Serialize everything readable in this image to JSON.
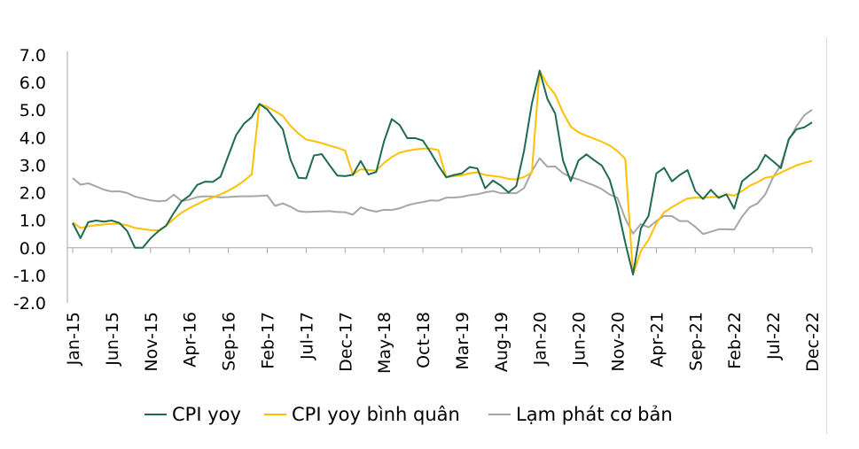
{
  "chart_data": {
    "type": "line",
    "title": "",
    "xlabel": "",
    "ylabel": "",
    "ylim": [
      -2.0,
      7.0
    ],
    "yticks": [
      "7.0",
      "6.0",
      "5.0",
      "4.0",
      "3.0",
      "2.0",
      "1.0",
      "0.0",
      "-1.0",
      "-2.0"
    ],
    "ytick_values": [
      7,
      6,
      5,
      4,
      3,
      2,
      1,
      0,
      -1,
      -2
    ],
    "xtick_labels": [
      "Jan-15",
      "Jun-15",
      "Nov-15",
      "Apr-16",
      "Sep-16",
      "Feb-17",
      "Jul-17",
      "Dec-17",
      "May-18",
      "Oct-18",
      "Mar-19",
      "Aug-19",
      "Jan-20",
      "Jun-20",
      "Nov-20",
      "Apr-21",
      "Sep-21",
      "Feb-22",
      "Jul-22",
      "Dec-22"
    ],
    "xtick_months": [
      0,
      5,
      10,
      15,
      20,
      25,
      30,
      35,
      40,
      45,
      50,
      55,
      60,
      65,
      70,
      75,
      80,
      85,
      90,
      95
    ],
    "month_count": 96,
    "legend_position": "bottom",
    "series": [
      {
        "name": "CPI yoy",
        "color": "#1f6b52",
        "values": [
          0.9,
          0.35,
          0.93,
          0.99,
          0.95,
          0.99,
          0.9,
          0.61,
          0.0,
          0.0,
          0.34,
          0.6,
          0.8,
          1.27,
          1.69,
          1.89,
          2.28,
          2.4,
          2.39,
          2.58,
          3.34,
          4.09,
          4.5,
          4.74,
          5.22,
          5.02,
          4.65,
          4.3,
          3.19,
          2.54,
          2.52,
          3.35,
          3.4,
          3.0,
          2.62,
          2.6,
          2.65,
          3.15,
          2.66,
          2.75,
          3.86,
          4.67,
          4.46,
          3.98,
          3.98,
          3.89,
          3.46,
          2.98,
          2.56,
          2.64,
          2.7,
          2.93,
          2.88,
          2.16,
          2.44,
          2.26,
          2.01,
          2.24,
          3.52,
          5.23,
          6.43,
          5.4,
          4.87,
          3.17,
          2.42,
          3.17,
          3.39,
          3.18,
          2.98,
          2.47,
          1.48,
          0.19,
          -0.97,
          0.7,
          1.16,
          2.7,
          2.9,
          2.41,
          2.64,
          2.82,
          2.06,
          1.77,
          2.1,
          1.81,
          1.94,
          1.42,
          2.41,
          2.64,
          2.86,
          3.37,
          3.14,
          2.89,
          3.94,
          4.3,
          4.37,
          4.55
        ]
      },
      {
        "name": "CPI yoy bình quân",
        "color": "#ffc000",
        "values": [
          0.92,
          0.72,
          0.78,
          0.82,
          0.85,
          0.87,
          0.87,
          0.82,
          0.72,
          0.68,
          0.64,
          0.63,
          0.8,
          1.05,
          1.28,
          1.44,
          1.58,
          1.72,
          1.83,
          1.94,
          2.07,
          2.23,
          2.43,
          2.66,
          5.22,
          5.12,
          4.96,
          4.79,
          4.42,
          4.15,
          3.93,
          3.87,
          3.8,
          3.71,
          3.63,
          3.53,
          2.65,
          2.85,
          2.82,
          2.8,
          3.08,
          3.29,
          3.45,
          3.52,
          3.57,
          3.6,
          3.6,
          3.54,
          2.56,
          2.6,
          2.63,
          2.7,
          2.74,
          2.64,
          2.61,
          2.57,
          2.5,
          2.48,
          2.57,
          2.73,
          6.43,
          5.91,
          5.56,
          4.91,
          4.4,
          4.19,
          4.07,
          3.96,
          3.85,
          3.71,
          3.51,
          3.23,
          -0.97,
          -0.12,
          0.29,
          0.89,
          1.29,
          1.47,
          1.64,
          1.79,
          1.82,
          1.81,
          1.84,
          1.84,
          1.94,
          1.89,
          2.06,
          2.25,
          2.38,
          2.54,
          2.59,
          2.73,
          2.86,
          2.99,
          3.08,
          3.15
        ]
      },
      {
        "name": "Lạm phát cơ bản",
        "color": "#a6a6a6",
        "values": [
          2.53,
          2.29,
          2.34,
          2.23,
          2.11,
          2.04,
          2.05,
          1.99,
          1.86,
          1.79,
          1.72,
          1.69,
          1.71,
          1.93,
          1.69,
          1.75,
          1.84,
          1.87,
          1.86,
          1.83,
          1.84,
          1.86,
          1.87,
          1.87,
          1.88,
          1.9,
          1.52,
          1.61,
          1.49,
          1.33,
          1.3,
          1.31,
          1.32,
          1.33,
          1.3,
          1.29,
          1.2,
          1.47,
          1.37,
          1.31,
          1.38,
          1.37,
          1.43,
          1.54,
          1.61,
          1.66,
          1.72,
          1.71,
          1.82,
          1.82,
          1.85,
          1.91,
          1.94,
          2.01,
          2.06,
          1.98,
          1.98,
          1.98,
          2.17,
          2.78,
          3.25,
          2.94,
          2.95,
          2.71,
          2.56,
          2.48,
          2.37,
          2.26,
          2.13,
          1.93,
          1.81,
          1.06,
          0.51,
          0.86,
          0.74,
          0.97,
          1.16,
          1.15,
          0.97,
          0.97,
          0.76,
          0.5,
          0.58,
          0.67,
          0.67,
          0.66,
          1.13,
          1.47,
          1.61,
          1.94,
          2.56,
          3.0,
          3.9,
          4.41,
          4.81,
          5.01
        ]
      }
    ]
  }
}
